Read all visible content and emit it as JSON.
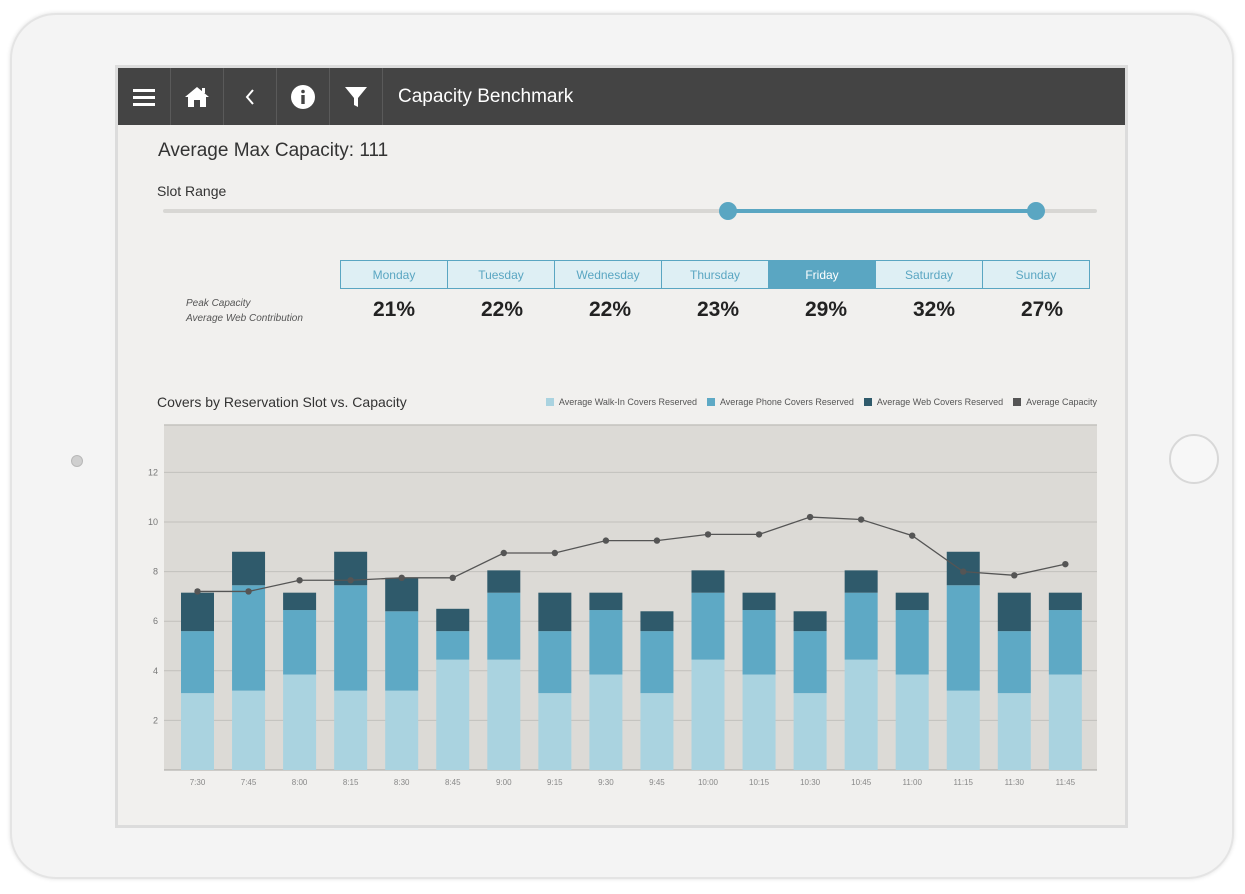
{
  "header": {
    "title": "Capacity Benchmark"
  },
  "summary": {
    "avg_max_capacity": "Average Max Capacity: 111"
  },
  "slot_range": {
    "label": "Slot Range",
    "start_fraction": 0.605,
    "end_fraction": 0.935
  },
  "days": [
    {
      "label": "Monday",
      "value": "21%"
    },
    {
      "label": "Tuesday",
      "value": "22%"
    },
    {
      "label": "Wednesday",
      "value": "22%"
    },
    {
      "label": "Thursday",
      "value": "23%"
    },
    {
      "label": "Friday",
      "value": "29%"
    },
    {
      "label": "Saturday",
      "value": "32%"
    },
    {
      "label": "Sunday",
      "value": "27%"
    }
  ],
  "active_day": "Friday",
  "peak": {
    "line1": "Peak Capacity",
    "line2": "Average Web Contribution"
  },
  "colors": {
    "accent": "#5aa6c2",
    "walk_in": "#aad3e0",
    "phone": "#5ea9c5",
    "web": "#2f5a6b",
    "capacity": "#555555",
    "topbar": "#444444"
  },
  "chart_data": {
    "type": "bar",
    "title": "Covers by Reservation Slot vs. Capacity",
    "xlabel": "",
    "ylabel": "",
    "ylim": [
      0,
      14
    ],
    "yticks": [
      2,
      4,
      6,
      8,
      10,
      12
    ],
    "grid": true,
    "legend_position": "top-right",
    "categories": [
      "7:30",
      "7:45",
      "8:00",
      "8:15",
      "8:30",
      "8:45",
      "9:00",
      "9:15",
      "9:30",
      "9:45",
      "10:00",
      "10:15",
      "10:30",
      "10:45",
      "11:00",
      "11:15",
      "11:30",
      "11:45"
    ],
    "series": [
      {
        "name": "Average Walk-In Covers Reserved",
        "kind": "stacked-bar",
        "values": [
          3.1,
          3.2,
          3.85,
          3.2,
          3.2,
          4.45,
          4.45,
          3.1,
          3.85,
          3.1,
          4.45,
          3.85,
          3.1,
          4.45,
          3.85,
          3.2,
          3.1,
          3.85
        ]
      },
      {
        "name": "Average Phone Covers Reserved",
        "kind": "stacked-bar",
        "values": [
          2.5,
          4.25,
          2.6,
          4.25,
          3.2,
          1.15,
          2.7,
          2.5,
          2.6,
          2.5,
          2.7,
          2.6,
          2.5,
          2.7,
          2.6,
          4.25,
          2.5,
          2.6
        ]
      },
      {
        "name": "Average Web Covers Reserved",
        "kind": "stacked-bar",
        "values": [
          1.55,
          1.35,
          0.7,
          1.35,
          1.35,
          0.9,
          0.9,
          1.55,
          0.7,
          0.8,
          0.9,
          0.7,
          0.8,
          0.9,
          0.7,
          1.35,
          1.55,
          0.7
        ]
      },
      {
        "name": "Average Capacity",
        "kind": "line",
        "values": [
          7.2,
          7.2,
          7.65,
          7.65,
          7.75,
          7.75,
          8.75,
          8.75,
          9.25,
          9.25,
          9.5,
          9.5,
          10.2,
          10.1,
          9.45,
          8.0,
          7.85,
          8.3
        ]
      }
    ]
  }
}
